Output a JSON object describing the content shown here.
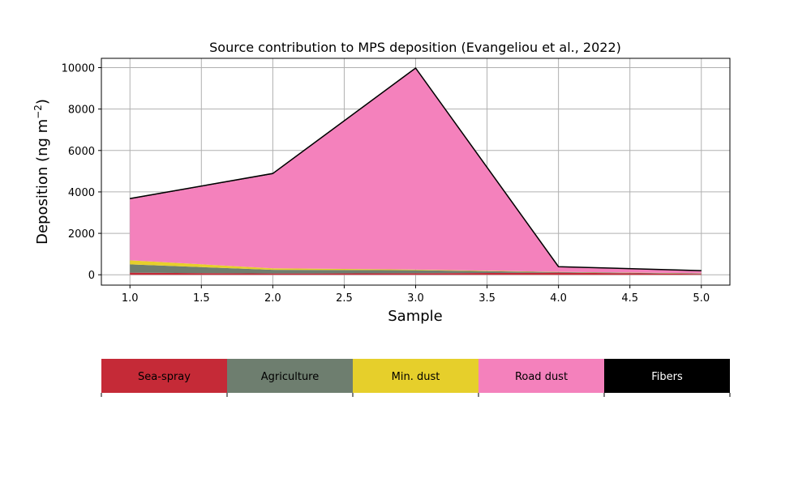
{
  "chart_data": {
    "type": "area",
    "stacked": true,
    "title": "Source contribution to MPS deposition (Evangeliou et al., 2022)",
    "xlabel": "Sample",
    "ylabel": "Deposition (ng m",
    "ylabel_sup": "−2",
    "ylabel_close": ")",
    "x": [
      1,
      2,
      3,
      4,
      5
    ],
    "xlim": [
      0.8,
      5.2
    ],
    "ylim": [
      -500,
      10450
    ],
    "x_ticks": [
      1.0,
      1.5,
      2.0,
      2.5,
      3.0,
      3.5,
      4.0,
      4.5,
      5.0
    ],
    "x_tick_labels": [
      "1.0",
      "1.5",
      "2.0",
      "2.5",
      "3.0",
      "3.5",
      "4.0",
      "4.5",
      "5.0"
    ],
    "y_ticks": [
      0,
      2000,
      4000,
      6000,
      8000,
      10000
    ],
    "y_tick_labels": [
      "0",
      "2000",
      "4000",
      "6000",
      "8000",
      "10000"
    ],
    "grid": true,
    "series": [
      {
        "name": "Sea-spray",
        "color": "#c52a37",
        "values": [
          100,
          60,
          70,
          100,
          40
        ]
      },
      {
        "name": "Agriculture",
        "color": "#6e7e6f",
        "values": [
          400,
          180,
          150,
          30,
          20
        ]
      },
      {
        "name": "Min. dust",
        "color": "#e6cf2b",
        "values": [
          200,
          70,
          30,
          10,
          10
        ]
      },
      {
        "name": "Road dust",
        "color": "#f481bc",
        "values": [
          2950,
          4550,
          9700,
          230,
          110
        ]
      },
      {
        "name": "Fibers",
        "color": "#000000",
        "values": [
          30,
          30,
          30,
          20,
          20
        ]
      }
    ],
    "legend_position": "bottom",
    "legend_text_colors": [
      "#000000",
      "#000000",
      "#000000",
      "#000000",
      "#ffffff"
    ]
  }
}
